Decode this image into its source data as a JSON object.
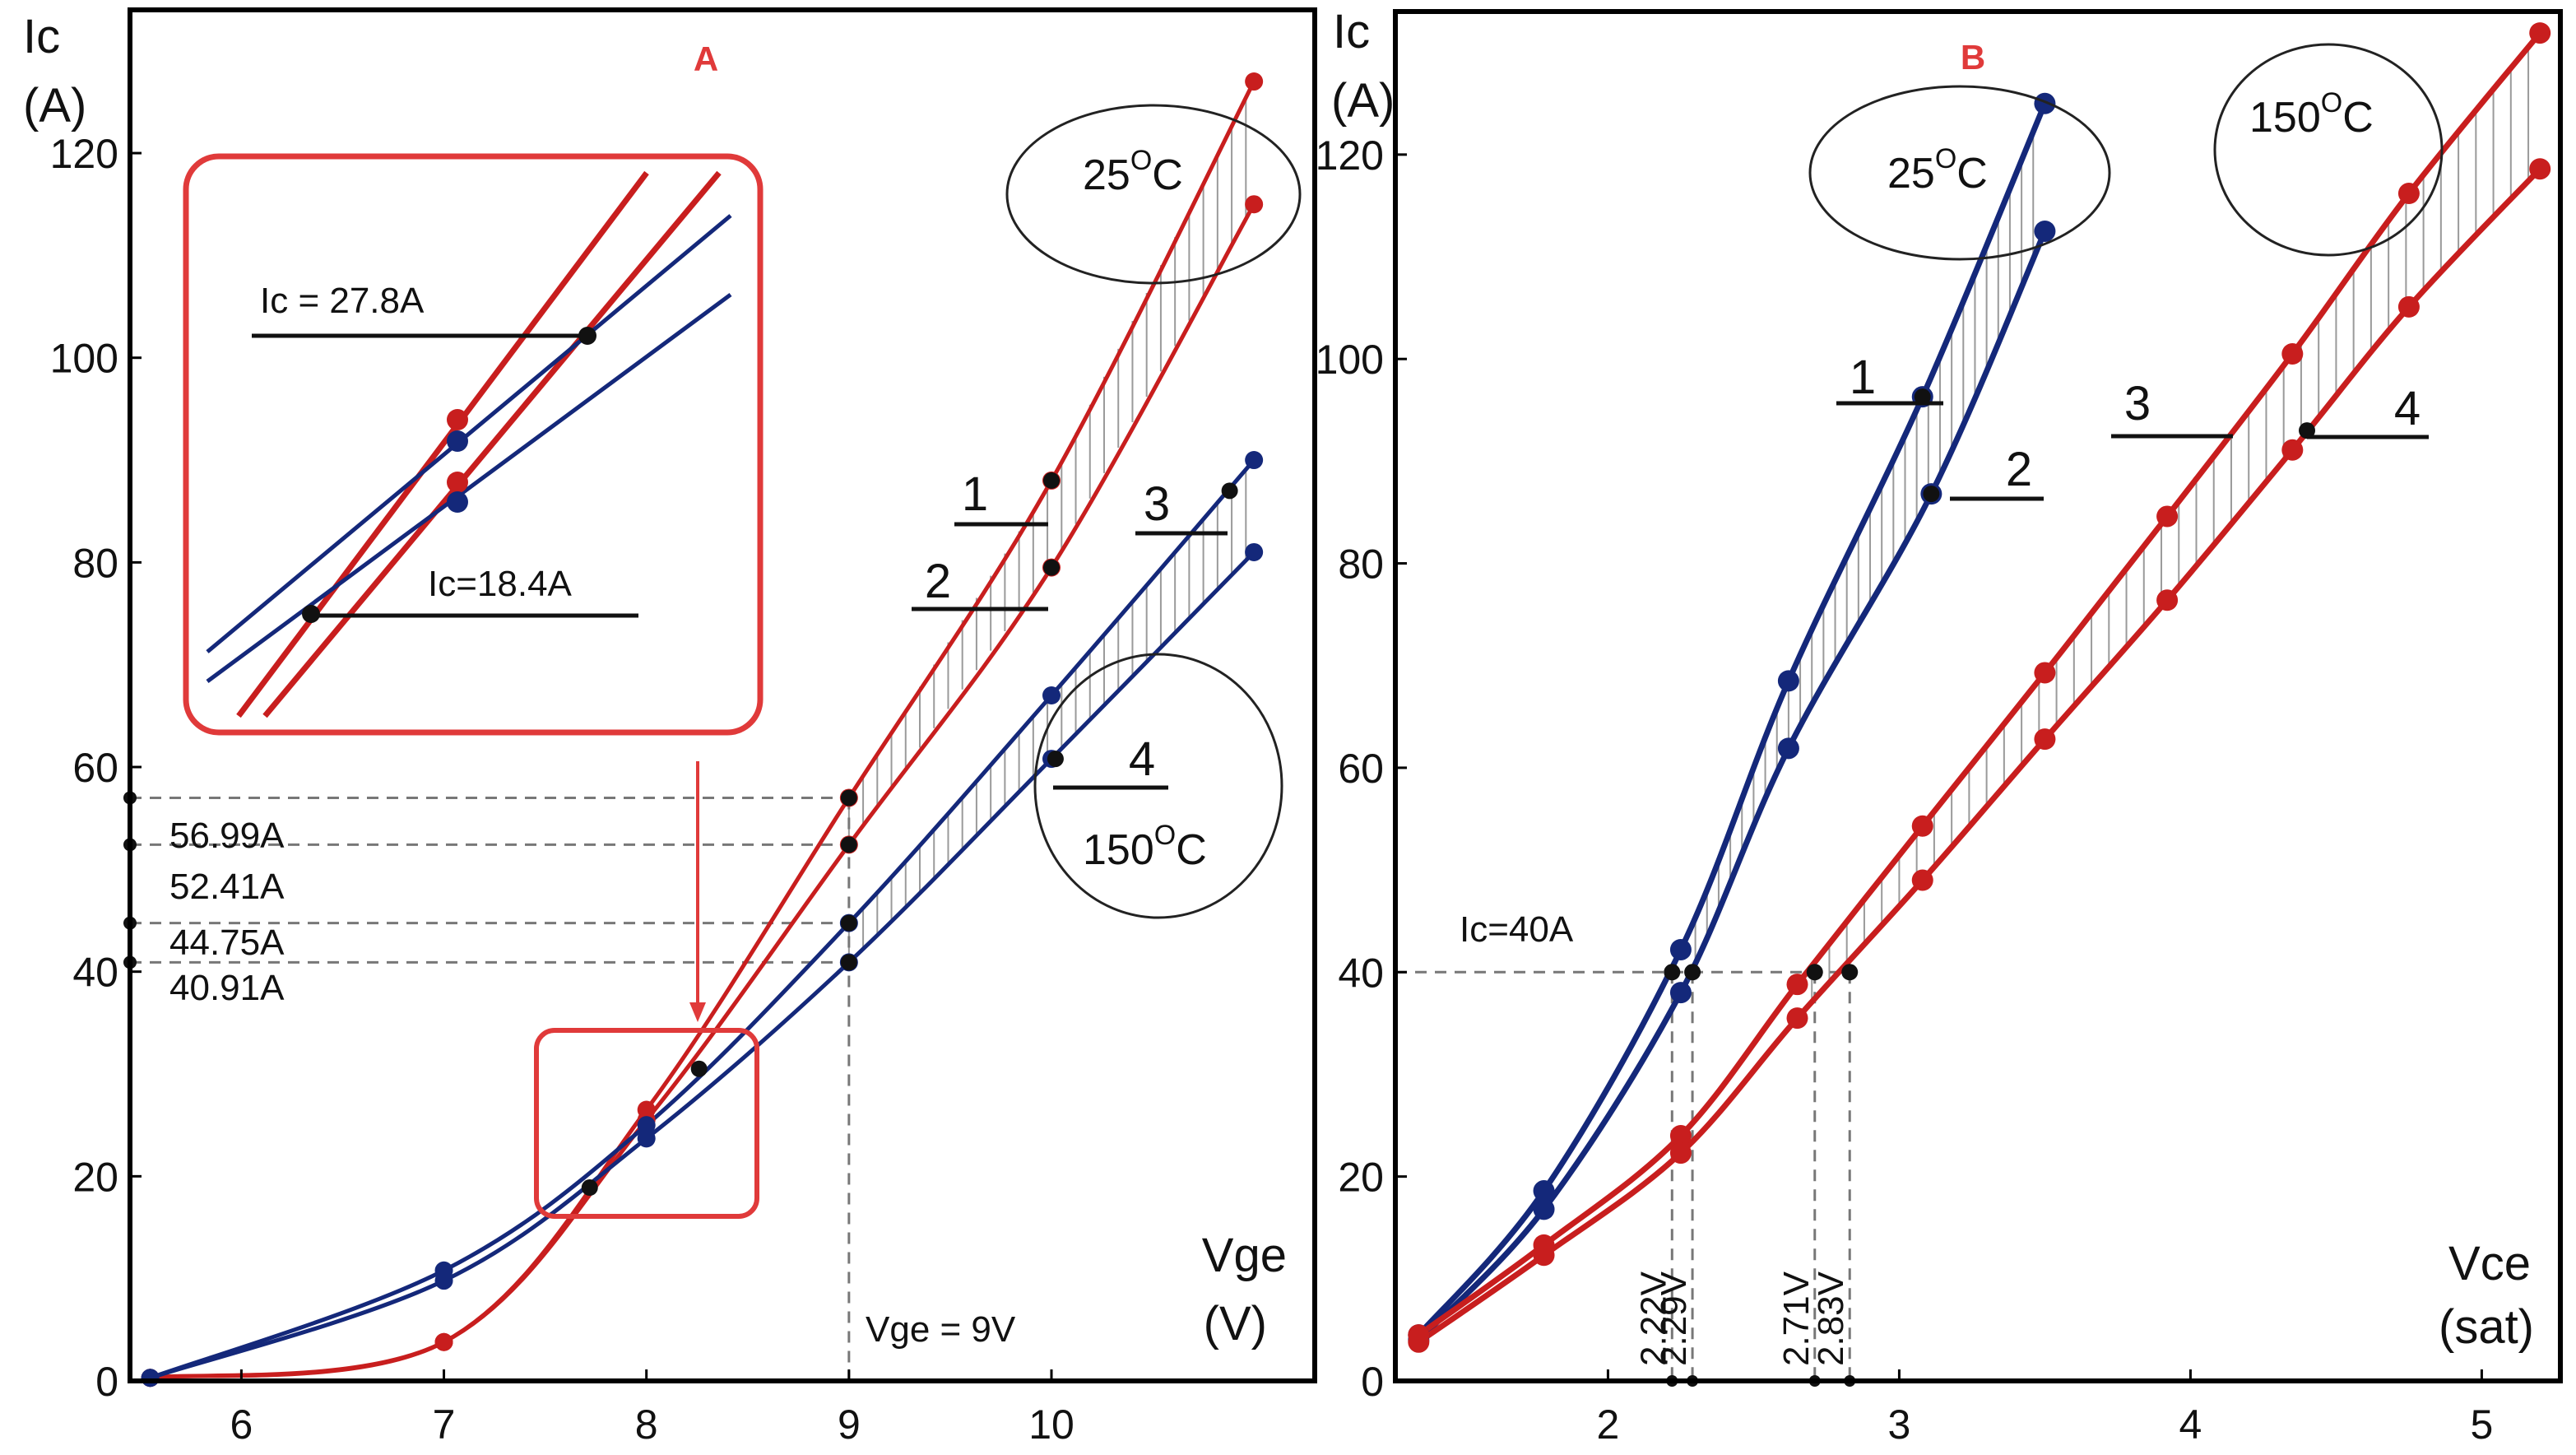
{
  "colors": {
    "red": "#c81e1e",
    "blue": "#14287a",
    "black": "#111111",
    "frame": "#000000",
    "box": "#e03a3a",
    "hatch": "#9a9a9a",
    "dash": "#777777"
  },
  "chart_data": [
    {
      "type": "line",
      "panel_label": "A",
      "title": "",
      "ylabel_line1": "Ic",
      "ylabel_line2": "(A)",
      "xlabel_line1": "Vge",
      "xlabel_line2": "(V)",
      "xlim": [
        5.45,
        11.3
      ],
      "ylim": [
        0,
        134
      ],
      "xticks": [
        6,
        7,
        8,
        9,
        10
      ],
      "yticks": [
        0,
        20,
        40,
        60,
        80,
        100,
        120
      ],
      "series": [
        {
          "name": "1",
          "color": "red",
          "x": [
            5.55,
            7,
            8,
            9,
            10,
            11
          ],
          "y": [
            0.3,
            3.8,
            26.5,
            56.99,
            88,
            127
          ]
        },
        {
          "name": "2",
          "color": "red",
          "x": [
            5.55,
            7,
            8,
            9,
            10,
            11
          ],
          "y": [
            0.3,
            3.8,
            25.5,
            52.41,
            79.5,
            115
          ]
        },
        {
          "name": "3",
          "color": "blue",
          "x": [
            5.55,
            7,
            8,
            9,
            10,
            11
          ],
          "y": [
            0.3,
            10.8,
            25,
            44.75,
            67,
            90
          ]
        },
        {
          "name": "4",
          "color": "blue",
          "x": [
            5.55,
            7,
            8,
            9,
            10,
            11
          ],
          "y": [
            0.3,
            9.8,
            23.7,
            40.91,
            60.8,
            81
          ]
        }
      ],
      "markers": [
        {
          "x": 7.72,
          "y": 18.9
        },
        {
          "x": 8.26,
          "y": 30.5
        },
        {
          "x": 9,
          "y": 56.99
        },
        {
          "x": 9,
          "y": 52.41
        },
        {
          "x": 9,
          "y": 44.75
        },
        {
          "x": 9,
          "y": 40.91
        },
        {
          "x": 10,
          "y": 88
        },
        {
          "x": 10,
          "y": 79.5
        },
        {
          "x": 10.88,
          "y": 87
        },
        {
          "x": 10.02,
          "y": 60.8
        }
      ],
      "value_labels": [
        "56.99A",
        "52.41A",
        "44.75A",
        "40.91A"
      ],
      "value_levels": [
        56.99,
        52.41,
        44.75,
        40.91
      ],
      "vline_x": 9,
      "vline_label": "Vge = 9V",
      "curve_labels": [
        "1",
        "2",
        "3",
        "4"
      ],
      "temp_labels": [
        "25",
        "150"
      ],
      "temp_unit": "C",
      "temp_sup": "O",
      "inset_labels": [
        "Ic = 27.8A",
        "Ic=18.4A"
      ]
    },
    {
      "type": "line",
      "panel_label": "B",
      "title": "",
      "ylabel_line1": "Ic",
      "ylabel_line2": "(A)",
      "xlabel_line1": "Vce",
      "xlabel_line2": "(sat)",
      "xlim": [
        1.27,
        5.27
      ],
      "ylim": [
        0,
        134
      ],
      "xticks": [
        2,
        3,
        4,
        5
      ],
      "yticks": [
        0,
        20,
        40,
        60,
        80,
        100,
        120
      ],
      "series": [
        {
          "name": "1",
          "color": "blue",
          "x": [
            1.35,
            1.78,
            2.25,
            2.62,
            3.08,
            3.5
          ],
          "y": [
            4.5,
            18.6,
            42.2,
            68.5,
            96.3,
            125
          ]
        },
        {
          "name": "2",
          "color": "blue",
          "x": [
            1.35,
            1.78,
            2.25,
            2.62,
            3.11,
            3.5
          ],
          "y": [
            4.0,
            16.8,
            38.0,
            61.9,
            86.8,
            112.5
          ]
        },
        {
          "name": "3",
          "color": "red",
          "x": [
            1.35,
            1.78,
            2.25,
            2.65,
            3.08,
            3.5,
            3.92,
            4.35,
            4.75,
            5.2
          ],
          "y": [
            4.5,
            13.3,
            24.0,
            38.8,
            54.3,
            69.3,
            84.6,
            100.5,
            116.2,
            131.9
          ]
        },
        {
          "name": "4",
          "color": "red",
          "x": [
            1.35,
            1.78,
            2.25,
            2.65,
            3.08,
            3.5,
            3.92,
            4.35,
            4.75,
            5.2
          ],
          "y": [
            3.8,
            12.3,
            22.3,
            35.5,
            49.0,
            62.8,
            76.4,
            91.1,
            105.1,
            118.6
          ]
        }
      ],
      "markers": [
        {
          "x": 2.22,
          "y": 40
        },
        {
          "x": 2.29,
          "y": 40
        },
        {
          "x": 2.71,
          "y": 40
        },
        {
          "x": 2.83,
          "y": 40
        },
        {
          "x": 3.08,
          "y": 96.3
        },
        {
          "x": 3.11,
          "y": 86.8
        },
        {
          "x": 4.4,
          "y": 93
        }
      ],
      "hline_y": 40,
      "hline_label": "Ic=40A",
      "vline_values": [
        2.22,
        2.29,
        2.71,
        2.83
      ],
      "vline_labels": [
        "2.22V",
        "2.29V",
        "2.71V",
        "2.83V"
      ],
      "curve_labels": [
        "1",
        "2",
        "3",
        "4"
      ],
      "temp_labels": [
        "25",
        "150"
      ],
      "temp_unit": "C",
      "temp_sup": "O"
    }
  ]
}
